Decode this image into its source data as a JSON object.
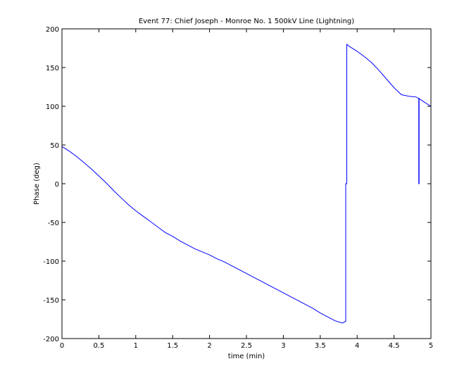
{
  "chart_data": {
    "type": "line",
    "title": "Event 77: Chief Joseph - Monroe No. 1 500kV Line (Lightning)",
    "xlabel": "time (min)",
    "ylabel": "Phase (deg)",
    "xlim": [
      0,
      5
    ],
    "ylim": [
      -200,
      200
    ],
    "xticks": [
      0,
      0.5,
      1,
      1.5,
      2,
      2.5,
      3,
      3.5,
      4,
      4.5,
      5
    ],
    "xtick_labels": [
      "0",
      "0.5",
      "1",
      "1.5",
      "2",
      "2.5",
      "3",
      "3.5",
      "4",
      "4.5",
      "5"
    ],
    "yticks": [
      -200,
      -150,
      -100,
      -50,
      0,
      50,
      100,
      150,
      200
    ],
    "ytick_labels": [
      "-200",
      "-150",
      "-100",
      "-50",
      "0",
      "50",
      "100",
      "150",
      "200"
    ],
    "grid": false,
    "line_color": "#0000ff",
    "series": [
      {
        "x": [
          0,
          0.1,
          0.2,
          0.3,
          0.4,
          0.5,
          0.6,
          0.7,
          0.8,
          0.9,
          1.0,
          1.1,
          1.2,
          1.3,
          1.4,
          1.5,
          1.6,
          1.7,
          1.8,
          1.9,
          2.0,
          2.1,
          2.2,
          2.3,
          2.4,
          2.5,
          2.6,
          2.7,
          2.8,
          2.9,
          3.0,
          3.1,
          3.2,
          3.3,
          3.4,
          3.5,
          3.6,
          3.7,
          3.8,
          3.84,
          3.845,
          3.845,
          3.86,
          3.86,
          3.9,
          4.0,
          4.1,
          4.2,
          4.3,
          4.4,
          4.5,
          4.6,
          4.7,
          4.8,
          4.835,
          4.835,
          4.84,
          4.84,
          4.9,
          5.0
        ],
        "y": [
          48,
          42,
          35,
          27,
          19,
          10,
          1,
          -9,
          -18,
          -27,
          -35,
          -42,
          -49,
          -56,
          -63,
          -68,
          -74,
          -79,
          -84,
          -88,
          -92,
          -97,
          -101,
          -106,
          -111,
          -116,
          -121,
          -126,
          -131,
          -136,
          -141,
          -146,
          -151,
          -156,
          -161,
          -167,
          -172,
          -177,
          -180,
          -178,
          -178,
          0,
          0,
          180,
          177,
          171,
          164,
          156,
          146,
          135,
          124,
          115,
          113,
          112,
          110,
          0,
          0,
          110,
          106,
          100
        ]
      }
    ]
  }
}
